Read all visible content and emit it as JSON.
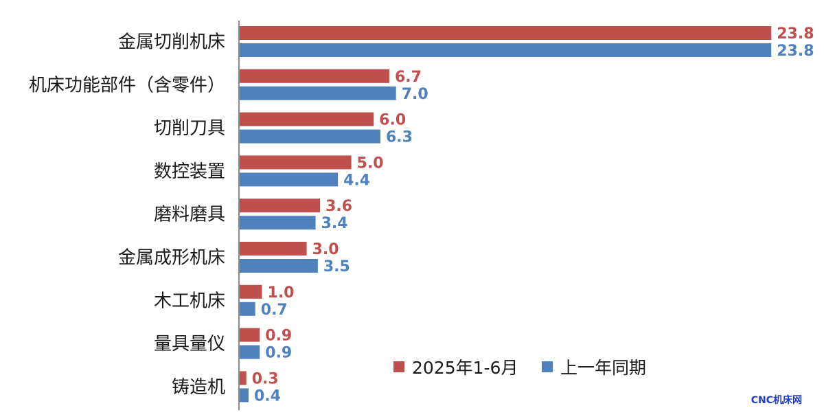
{
  "chart_data": {
    "type": "bar",
    "orientation": "horizontal",
    "categories": [
      "金属切削机床",
      "机床功能部件（含零件）",
      "切削刀具",
      "数控装置",
      "磨料磨具",
      "金属成形机床",
      "木工机床",
      "量具量仪",
      "铸造机"
    ],
    "series": [
      {
        "name": "2025年1-6月",
        "values": [
          23.8,
          6.7,
          6.0,
          5.0,
          3.6,
          3.0,
          1.0,
          0.9,
          0.3
        ],
        "color": "#c0504d"
      },
      {
        "name": "上一年同期",
        "values": [
          23.8,
          7.0,
          6.3,
          4.4,
          3.4,
          3.5,
          0.7,
          0.9,
          0.4
        ],
        "color": "#4f81bd"
      }
    ],
    "value_labels": [
      [
        "23.8",
        "6.7",
        "6.0",
        "5.0",
        "3.6",
        "3.0",
        "1.0",
        "0.9",
        "0.3"
      ],
      [
        "23.8",
        "7.0",
        "6.3",
        "4.4",
        "3.4",
        "3.5",
        "0.7",
        "0.9",
        "0.4"
      ]
    ],
    "xlim": [
      0,
      24.5
    ],
    "grid": false,
    "legend_position": "bottom-right"
  },
  "watermark": "CNC机床网"
}
